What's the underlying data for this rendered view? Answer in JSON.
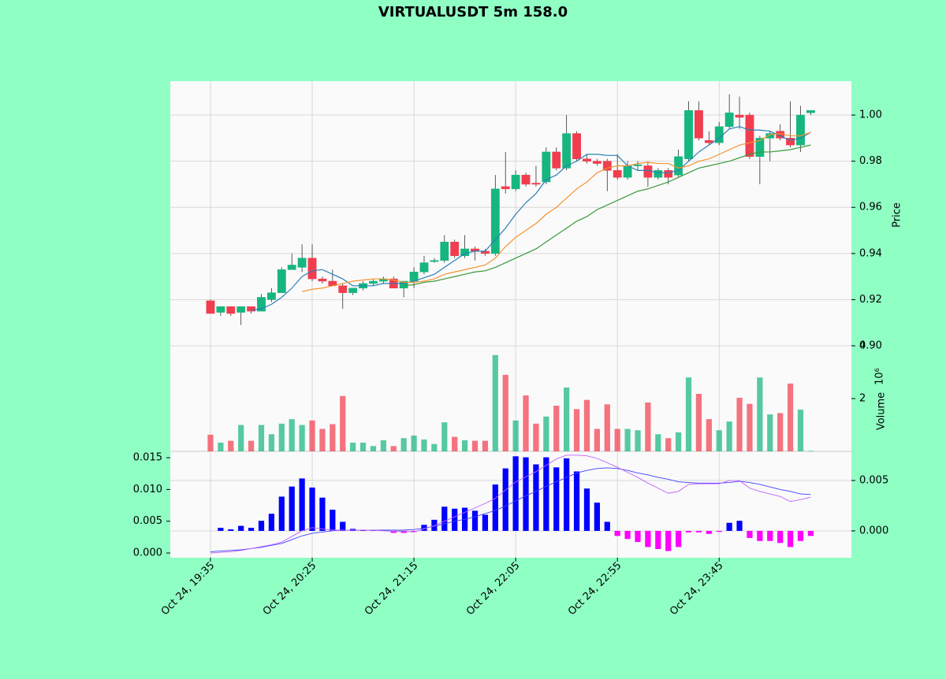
{
  "chart_data": [
    {
      "type": "candlestick",
      "title": "VIRTUALUSDT 5m 158.0",
      "ylabel": "Price",
      "x": [
        0,
        1,
        2,
        3,
        4,
        5,
        6,
        7,
        8,
        9,
        10,
        11,
        12,
        13,
        14,
        15,
        16,
        17,
        18,
        19,
        20,
        21,
        22,
        23,
        24,
        25,
        26,
        27,
        28,
        29,
        30,
        31,
        32,
        33,
        34,
        35,
        36,
        37,
        38,
        39,
        40,
        41,
        42,
        43,
        44,
        45,
        46,
        47,
        48,
        49,
        50,
        51,
        52,
        53,
        54,
        55,
        56,
        57,
        58,
        59
      ],
      "xlim": [
        -3.95,
        63.0
      ],
      "xticks": [
        {
          "value": 0,
          "label": "Oct 24, 19:35"
        },
        {
          "value": 10,
          "label": "Oct 24, 20:25"
        },
        {
          "value": 20,
          "label": "Oct 24, 21:15"
        },
        {
          "value": 30,
          "label": "Oct 24, 22:05"
        },
        {
          "value": 40,
          "label": "Oct 24, 22:55"
        },
        {
          "value": 50,
          "label": "Oct 24, 23:45"
        }
      ],
      "open": [
        0.9195,
        0.9145,
        0.917,
        0.9145,
        0.917,
        0.915,
        0.92,
        0.923,
        0.933,
        0.934,
        0.938,
        0.929,
        0.928,
        0.926,
        0.923,
        0.925,
        0.927,
        0.928,
        0.929,
        0.925,
        0.928,
        0.932,
        0.9365,
        0.937,
        0.945,
        0.939,
        0.942,
        0.941,
        0.94,
        0.969,
        0.968,
        0.974,
        0.9705,
        0.971,
        0.984,
        0.977,
        0.992,
        0.981,
        0.98,
        0.98,
        0.976,
        0.973,
        0.978,
        0.978,
        0.973,
        0.976,
        0.974,
        0.981,
        1.002,
        0.989,
        0.988,
        0.995,
        1.0,
        1.0,
        0.982,
        0.99,
        0.993,
        0.99,
        0.987,
        1.001
      ],
      "high": [
        0.92,
        0.917,
        0.917,
        0.917,
        0.917,
        0.9225,
        0.925,
        0.934,
        0.94,
        0.944,
        0.944,
        0.93,
        0.933,
        0.927,
        0.925,
        0.928,
        0.929,
        0.93,
        0.93,
        0.928,
        0.934,
        0.939,
        0.938,
        0.948,
        0.946,
        0.948,
        0.943,
        0.942,
        0.974,
        0.984,
        0.976,
        0.975,
        0.978,
        0.986,
        0.986,
        1.0,
        0.993,
        0.983,
        0.981,
        0.981,
        0.983,
        0.98,
        0.98,
        0.98,
        0.977,
        0.977,
        0.985,
        1.006,
        1.006,
        0.993,
        0.997,
        1.009,
        1.008,
        1.001,
        0.991,
        0.993,
        0.996,
        1.006,
        1.004,
        1.002
      ],
      "low": [
        0.914,
        0.913,
        0.913,
        0.909,
        0.914,
        0.915,
        0.919,
        0.923,
        0.933,
        0.932,
        0.928,
        0.927,
        0.926,
        0.916,
        0.922,
        0.924,
        0.926,
        0.927,
        0.925,
        0.921,
        0.925,
        0.931,
        0.936,
        0.936,
        0.938,
        0.938,
        0.937,
        0.939,
        0.939,
        0.966,
        0.967,
        0.969,
        0.969,
        0.97,
        0.976,
        0.976,
        0.98,
        0.979,
        0.978,
        0.967,
        0.972,
        0.972,
        0.976,
        0.969,
        0.972,
        0.97,
        0.973,
        0.98,
        0.989,
        0.987,
        0.987,
        0.994,
        0.994,
        0.981,
        0.97,
        0.98,
        0.989,
        0.986,
        0.984,
        1.0
      ],
      "close": [
        0.914,
        0.917,
        0.914,
        0.917,
        0.915,
        0.921,
        0.923,
        0.933,
        0.935,
        0.938,
        0.929,
        0.928,
        0.926,
        0.923,
        0.925,
        0.927,
        0.928,
        0.929,
        0.925,
        0.928,
        0.932,
        0.936,
        0.937,
        0.945,
        0.939,
        0.942,
        0.941,
        0.94,
        0.968,
        0.968,
        0.974,
        0.97,
        0.97,
        0.984,
        0.977,
        0.992,
        0.981,
        0.98,
        0.979,
        0.976,
        0.973,
        0.978,
        0.9785,
        0.973,
        0.976,
        0.973,
        0.982,
        1.002,
        0.99,
        0.988,
        0.995,
        1.001,
        0.999,
        0.982,
        0.99,
        0.992,
        0.99,
        0.987,
        1.0,
        1.002
      ],
      "up_color": "#16b67f",
      "down_color": "#f23d4f",
      "moving_averages": [
        {
          "color": "#2a7fb8",
          "values": [
            null,
            null,
            null,
            null,
            0.9155,
            0.916,
            0.918,
            0.921,
            0.925,
            0.93,
            0.9325,
            0.933,
            0.931,
            0.929,
            0.926,
            0.926,
            0.926,
            0.927,
            0.927,
            0.927,
            0.928,
            0.9295,
            0.931,
            0.934,
            0.937,
            0.94,
            0.941,
            0.941,
            0.946,
            0.951,
            0.957,
            0.962,
            0.966,
            0.972,
            0.974,
            0.978,
            0.98,
            0.983,
            0.983,
            0.9825,
            0.9825,
            0.978,
            0.976,
            0.976,
            0.975,
            0.975,
            0.976,
            0.98,
            0.984,
            0.987,
            0.99,
            0.994,
            0.995,
            0.9935,
            0.9935,
            0.993,
            0.991,
            0.989,
            0.99,
            0.9925
          ]
        },
        {
          "color": "#f5922f",
          "values": [
            null,
            null,
            null,
            null,
            null,
            null,
            null,
            null,
            null,
            0.9235,
            0.9245,
            0.925,
            0.926,
            0.927,
            0.928,
            0.9285,
            0.929,
            0.929,
            0.9285,
            0.9275,
            0.9275,
            0.928,
            0.929,
            0.931,
            0.932,
            0.933,
            0.934,
            0.935,
            0.938,
            0.943,
            0.947,
            0.95,
            0.953,
            0.957,
            0.96,
            0.964,
            0.968,
            0.971,
            0.975,
            0.977,
            0.978,
            0.978,
            0.979,
            0.9795,
            0.979,
            0.979,
            0.977,
            0.978,
            0.98,
            0.981,
            0.983,
            0.985,
            0.987,
            0.988,
            0.989,
            0.9915,
            0.992,
            0.991,
            0.991,
            0.9925
          ]
        },
        {
          "color": "#3a9a3a",
          "values": [
            null,
            null,
            null,
            null,
            null,
            null,
            null,
            null,
            null,
            null,
            null,
            null,
            null,
            null,
            null,
            null,
            null,
            null,
            null,
            0.926,
            0.9265,
            0.9275,
            0.928,
            0.929,
            0.93,
            0.931,
            0.932,
            0.9325,
            0.934,
            0.936,
            0.938,
            0.94,
            0.942,
            0.945,
            0.948,
            0.951,
            0.954,
            0.956,
            0.959,
            0.961,
            0.963,
            0.965,
            0.967,
            0.968,
            0.9695,
            0.971,
            0.973,
            0.975,
            0.977,
            0.978,
            0.979,
            0.98,
            0.9815,
            0.983,
            0.984,
            0.984,
            0.9845,
            0.985,
            0.986,
            0.987
          ]
        }
      ],
      "ylim": [
        0.9,
        1.0147
      ],
      "yticks": [
        {
          "value": 0.9,
          "label": "0.90"
        },
        {
          "value": 0.92,
          "label": "0.92"
        },
        {
          "value": 0.94,
          "label": "0.94"
        },
        {
          "value": 0.96,
          "label": "0.96"
        },
        {
          "value": 0.98,
          "label": "0.98"
        },
        {
          "value": 1.0,
          "label": "1.00"
        }
      ],
      "grid": true
    },
    {
      "type": "bar",
      "ylabel": "Volume",
      "offset_label": "10⁶",
      "values": [
        0.63,
        0.33,
        0.4,
        1.0,
        0.4,
        1.0,
        0.65,
        1.05,
        1.22,
        1.0,
        1.17,
        0.85,
        1.03,
        2.1,
        0.33,
        0.33,
        0.2,
        0.42,
        0.2,
        0.5,
        0.6,
        0.45,
        0.28,
        1.1,
        0.55,
        0.42,
        0.4,
        0.4,
        3.65,
        2.9,
        1.17,
        2.12,
        1.05,
        1.32,
        1.73,
        2.42,
        1.6,
        1.95,
        0.85,
        1.78,
        0.85,
        0.85,
        0.8,
        1.85,
        0.65,
        0.5,
        0.72,
        2.8,
        2.18,
        1.22,
        0.8,
        1.13,
        2.03,
        1.8,
        2.8,
        1.4,
        1.45,
        2.57,
        1.58,
        0.02
      ],
      "ylim": [
        0,
        4.0
      ],
      "yticks": [
        2,
        4
      ],
      "opacity": 0.72
    },
    {
      "type": "macd",
      "values": [
        null,
        0.0003,
        0.00015,
        0.0005,
        0.0003,
        0.001,
        0.0017,
        0.0034,
        0.0044,
        0.0052,
        0.0043,
        0.0033,
        0.0021,
        0.0009,
        0.0002,
        5e-05,
        3e-05,
        2e-05,
        -0.0002,
        -0.0002,
        -0.0001,
        0.0006,
        0.0011,
        0.0024,
        0.0022,
        0.0023,
        0.002,
        0.0016,
        0.0046,
        0.0062,
        0.0074,
        0.0073,
        0.0066,
        0.0073,
        0.0063,
        0.0072,
        0.0059,
        0.0042,
        0.0028,
        0.0009,
        -0.0005,
        -0.0008,
        -0.0011,
        -0.0016,
        -0.0018,
        -0.002,
        -0.0016,
        -0.00015,
        -0.00015,
        -0.0003,
        -0.0001,
        0.0008,
        0.001,
        -0.0007,
        -0.001,
        -0.001,
        -0.0012,
        -0.0016,
        -0.001,
        -0.0005
      ],
      "axis": "y2",
      "up_color": "#0000ff",
      "down_color": "#ff00ff",
      "lines": [
        {
          "color": "#4040ff",
          "values": [
            0.0002,
            0.0003,
            0.0004,
            0.0005,
            0.0007,
            0.0009,
            0.0012,
            0.0015,
            0.0021,
            0.0027,
            0.0031,
            0.0033,
            0.0035,
            0.0036,
            0.0036,
            0.0036,
            0.0036,
            0.0036,
            0.0036,
            0.0036,
            0.0037,
            0.0039,
            0.0042,
            0.0046,
            0.005,
            0.0053,
            0.0057,
            0.0062,
            0.0067,
            0.0074,
            0.0082,
            0.009,
            0.0097,
            0.0105,
            0.0112,
            0.0119,
            0.0126,
            0.013,
            0.0133,
            0.0134,
            0.0133,
            0.013,
            0.0126,
            0.0123,
            0.0119,
            0.0116,
            0.0112,
            0.0111,
            0.011,
            0.011,
            0.011,
            0.0111,
            0.0113,
            0.0111,
            0.0108,
            0.0104,
            0.01,
            0.0097,
            0.0093,
            0.0092
          ]
        },
        {
          "color": "#c060ff",
          "values": [
            0,
            0.0001,
            0.0002,
            0.0004,
            0.0007,
            0.001,
            0.0013,
            0.0017,
            0.0026,
            0.0035,
            0.004,
            0.0038,
            0.0036,
            0.0036,
            0.0036,
            0.0036,
            0.0036,
            0.0035,
            0.0034,
            0.0034,
            0.0033,
            0.0038,
            0.0043,
            0.005,
            0.0057,
            0.0064,
            0.0071,
            0.0078,
            0.0086,
            0.0099,
            0.0112,
            0.012,
            0.0128,
            0.0138,
            0.0148,
            0.0154,
            0.0154,
            0.0153,
            0.0149,
            0.0142,
            0.0135,
            0.0127,
            0.0119,
            0.011,
            0.0102,
            0.0094,
            0.0097,
            0.0108,
            0.0109,
            0.0109,
            0.0109,
            0.0114,
            0.0114,
            0.0102,
            0.0097,
            0.0093,
            0.0089,
            0.0081,
            0.0084,
            0.0088
          ]
        }
      ],
      "ylim": [
        -0.00074,
        0.016
      ],
      "yticks": [
        {
          "value": 0,
          "label": "0.000"
        },
        {
          "value": 0.005,
          "label": "0.005"
        },
        {
          "value": 0.01,
          "label": "0.010"
        },
        {
          "value": 0.015,
          "label": "0.015"
        }
      ],
      "y2lim": [
        -0.00266,
        0.00789
      ],
      "y2ticks": [
        {
          "value": 0,
          "label": "0.000"
        },
        {
          "value": 0.005,
          "label": "0.005"
        }
      ]
    }
  ]
}
